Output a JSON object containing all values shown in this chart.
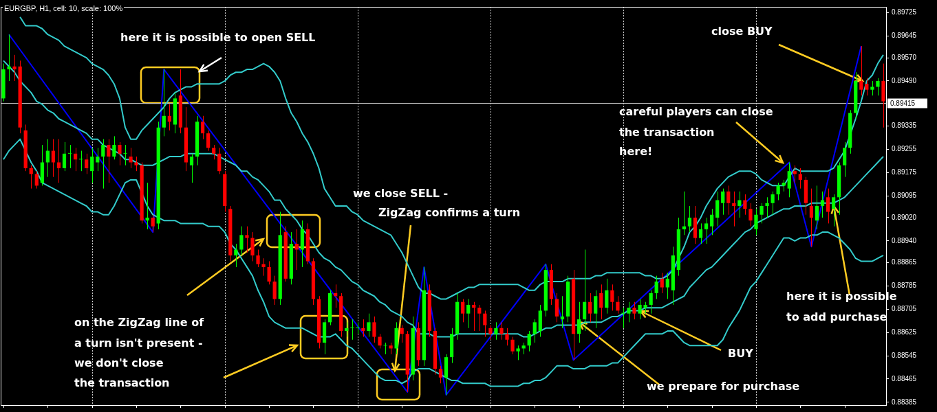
{
  "chart_data": {
    "type": "candlestick",
    "title": "EURGBP, H1, cell: 10, scale: 100%",
    "categories": [
      null,
      null,
      null,
      null,
      null,
      null,
      null,
      null,
      null,
      null,
      null,
      null,
      null,
      null,
      null,
      null,
      null,
      null,
      null,
      null,
      null,
      null,
      null,
      null,
      null,
      null,
      null,
      null,
      null,
      null,
      null,
      null,
      null,
      null,
      null,
      null,
      null,
      null,
      null,
      null,
      null,
      null,
      null,
      null,
      null,
      null,
      null,
      null,
      null,
      null,
      null,
      null,
      null,
      null,
      null,
      null,
      null,
      null,
      null,
      null,
      null,
      null,
      null,
      null,
      null,
      null,
      null,
      null,
      null,
      null,
      null,
      null,
      null,
      null,
      null,
      null,
      null,
      null,
      null,
      null,
      null,
      null,
      null,
      null,
      null,
      null,
      null,
      null,
      null,
      null,
      null,
      null,
      null,
      null,
      null,
      null,
      null,
      null,
      null,
      null,
      null,
      null,
      null,
      null,
      null,
      null,
      null,
      null,
      null,
      null,
      null,
      null,
      null,
      null,
      null,
      null,
      null,
      null,
      null,
      null,
      null,
      null,
      null,
      null,
      null,
      null,
      null,
      null,
      null,
      null,
      null,
      null,
      null,
      null,
      null,
      null,
      null,
      null,
      null,
      null,
      null,
      null,
      null,
      null,
      null,
      null,
      null,
      null,
      null,
      null,
      null,
      null,
      null,
      null,
      null,
      null,
      null,
      null,
      null,
      null
    ],
    "ohlc": [
      [
        0.8943,
        0.8955,
        0.8942,
        0.8953
      ],
      [
        0.8953,
        0.8965,
        0.8949,
        0.8954
      ],
      [
        0.8954,
        0.8958,
        0.8949,
        0.8953
      ],
      [
        0.8954,
        0.8956,
        0.8931,
        0.8933
      ],
      [
        0.8932,
        0.8934,
        0.8918,
        0.8919
      ],
      [
        0.8919,
        0.892,
        0.8912,
        0.8917
      ],
      [
        0.8917,
        0.8918,
        0.8912,
        0.8913
      ],
      [
        0.8914,
        0.8927,
        0.8913,
        0.8921
      ],
      [
        0.8921,
        0.8929,
        0.8916,
        0.8925
      ],
      [
        0.8925,
        0.8929,
        0.8916,
        0.8921
      ],
      [
        0.8921,
        0.8929,
        0.8914,
        0.8919
      ],
      [
        0.8919,
        0.8928,
        0.8918,
        0.8924
      ],
      [
        0.8924,
        0.8927,
        0.8919,
        0.8924
      ],
      [
        0.8924,
        0.8926,
        0.8918,
        0.8922
      ],
      [
        0.8922,
        0.8925,
        0.8918,
        0.8922
      ],
      [
        0.8922,
        0.8924,
        0.8917,
        0.8919
      ],
      [
        0.8918,
        0.8926,
        0.8914,
        0.8923
      ],
      [
        0.8921,
        0.8926,
        0.8918,
        0.8923
      ],
      [
        0.8923,
        0.8929,
        0.8912,
        0.8927
      ],
      [
        0.8927,
        0.8929,
        0.8914,
        0.8923
      ],
      [
        0.8923,
        0.893,
        0.8922,
        0.8927
      ],
      [
        0.8927,
        0.8928,
        0.892,
        0.8924
      ],
      [
        0.8924,
        0.8927,
        0.892,
        0.8924
      ],
      [
        0.8923,
        0.8926,
        0.8919,
        0.8921
      ],
      [
        0.8921,
        0.8923,
        0.8918,
        0.892
      ],
      [
        0.892,
        0.8921,
        0.89,
        0.8901
      ],
      [
        0.8901,
        0.8914,
        0.8898,
        0.8902
      ],
      [
        0.8902,
        0.8903,
        0.8897,
        0.8899
      ],
      [
        0.89,
        0.8935,
        0.8898,
        0.8933
      ],
      [
        0.8933,
        0.8953,
        0.893,
        0.8937
      ],
      [
        0.8937,
        0.8941,
        0.8932,
        0.8935
      ],
      [
        0.8934,
        0.8945,
        0.8931,
        0.8943
      ],
      [
        0.8944,
        0.8953,
        0.8931,
        0.8933
      ],
      [
        0.8933,
        0.894,
        0.8918,
        0.8921
      ],
      [
        0.892,
        0.8924,
        0.8914,
        0.8923
      ],
      [
        0.8923,
        0.8937,
        0.892,
        0.8935
      ],
      [
        0.8935,
        0.8937,
        0.8929,
        0.8931
      ],
      [
        0.8931,
        0.8932,
        0.8925,
        0.8926
      ],
      [
        0.8926,
        0.8927,
        0.8922,
        0.8924
      ],
      [
        0.8924,
        0.8926,
        0.8917,
        0.8918
      ],
      [
        0.8917,
        0.8918,
        0.8904,
        0.8906
      ],
      [
        0.8905,
        0.8906,
        0.8887,
        0.8889
      ],
      [
        0.8889,
        0.8893,
        0.8885,
        0.8891
      ],
      [
        0.8891,
        0.8899,
        0.8889,
        0.8896
      ],
      [
        0.8896,
        0.8899,
        0.889,
        0.8895
      ],
      [
        0.8895,
        0.8897,
        0.8887,
        0.8889
      ],
      [
        0.8889,
        0.8891,
        0.8885,
        0.8886
      ],
      [
        0.8886,
        0.8888,
        0.8882,
        0.8885
      ],
      [
        0.8885,
        0.8887,
        0.8879,
        0.888
      ],
      [
        0.888,
        0.8882,
        0.8872,
        0.8874
      ],
      [
        0.8874,
        0.8904,
        0.8872,
        0.8896
      ],
      [
        0.8897,
        0.8899,
        0.888,
        0.8881
      ],
      [
        0.8881,
        0.8897,
        0.8879,
        0.8893
      ],
      [
        0.8893,
        0.8898,
        0.8884,
        0.8891
      ],
      [
        0.8891,
        0.8901,
        0.8885,
        0.8898
      ],
      [
        0.8898,
        0.89,
        0.8886,
        0.8887
      ],
      [
        0.8887,
        0.8888,
        0.8872,
        0.8874
      ],
      [
        0.8874,
        0.8875,
        0.8857,
        0.8859
      ],
      [
        0.8859,
        0.8867,
        0.8855,
        0.8866
      ],
      [
        0.8866,
        0.8877,
        0.8865,
        0.8876
      ],
      [
        0.8876,
        0.8879,
        0.8871,
        0.8875
      ],
      [
        0.8875,
        0.8876,
        0.8861,
        0.8863
      ],
      [
        0.8863,
        0.8866,
        0.8861,
        0.8864
      ],
      [
        0.8864,
        0.8867,
        0.886,
        0.8864
      ],
      [
        0.8864,
        0.8866,
        0.8862,
        0.8864
      ],
      [
        0.8864,
        0.8867,
        0.8861,
        0.8863
      ],
      [
        0.8863,
        0.8869,
        0.8861,
        0.8866
      ],
      [
        0.8866,
        0.8868,
        0.8859,
        0.8861
      ],
      [
        0.8861,
        0.8862,
        0.8857,
        0.8858
      ],
      [
        0.8858,
        0.8859,
        0.8855,
        0.8858
      ],
      [
        0.8858,
        0.8859,
        0.8855,
        0.8857
      ],
      [
        0.8857,
        0.8866,
        0.8855,
        0.8864
      ],
      [
        0.8864,
        0.8865,
        0.8859,
        0.8862
      ],
      [
        0.8862,
        0.8863,
        0.8842,
        0.8848
      ],
      [
        0.8848,
        0.8868,
        0.8846,
        0.8864
      ],
      [
        0.8864,
        0.8866,
        0.8851,
        0.8853
      ],
      [
        0.8853,
        0.8885,
        0.8851,
        0.8877
      ],
      [
        0.8877,
        0.8879,
        0.8861,
        0.8863
      ],
      [
        0.8863,
        0.8864,
        0.8848,
        0.885
      ],
      [
        0.885,
        0.8851,
        0.8845,
        0.8847
      ],
      [
        0.8847,
        0.8855,
        0.8841,
        0.8854
      ],
      [
        0.8854,
        0.8864,
        0.8852,
        0.8862
      ],
      [
        0.8862,
        0.8876,
        0.886,
        0.8873
      ],
      [
        0.8873,
        0.8874,
        0.8866,
        0.8869
      ],
      [
        0.8869,
        0.8874,
        0.8864,
        0.8872
      ],
      [
        0.8872,
        0.8873,
        0.8863,
        0.8871
      ],
      [
        0.8871,
        0.8872,
        0.8863,
        0.8869
      ],
      [
        0.8869,
        0.887,
        0.8861,
        0.8865
      ],
      [
        0.8864,
        0.8865,
        0.886,
        0.8862
      ],
      [
        0.8862,
        0.8866,
        0.886,
        0.8864
      ],
      [
        0.8864,
        0.8866,
        0.886,
        0.8862
      ],
      [
        0.8862,
        0.8864,
        0.8858,
        0.886
      ],
      [
        0.886,
        0.8861,
        0.8855,
        0.8856
      ],
      [
        0.8856,
        0.8858,
        0.8853,
        0.8857
      ],
      [
        0.8857,
        0.8859,
        0.8855,
        0.8858
      ],
      [
        0.8858,
        0.8863,
        0.8856,
        0.8862
      ],
      [
        0.8862,
        0.8867,
        0.8859,
        0.8866
      ],
      [
        0.8863,
        0.8872,
        0.8861,
        0.887
      ],
      [
        0.887,
        0.8886,
        0.8868,
        0.8884
      ],
      [
        0.8884,
        0.8886,
        0.8872,
        0.8874
      ],
      [
        0.8874,
        0.8876,
        0.8866,
        0.8868
      ],
      [
        0.8867,
        0.8875,
        0.8864,
        0.8868
      ],
      [
        0.8868,
        0.8882,
        0.8866,
        0.888
      ],
      [
        0.8881,
        0.8884,
        0.8853,
        0.8862
      ],
      [
        0.8862,
        0.8873,
        0.8859,
        0.8867
      ],
      [
        0.8867,
        0.8891,
        0.8863,
        0.8873
      ],
      [
        0.8873,
        0.8876,
        0.8866,
        0.8869
      ],
      [
        0.8869,
        0.8877,
        0.8864,
        0.8875
      ],
      [
        0.8876,
        0.8879,
        0.8867,
        0.8871
      ],
      [
        0.8871,
        0.8881,
        0.8869,
        0.8877
      ],
      [
        0.8877,
        0.8879,
        0.887,
        0.8873
      ],
      [
        0.8873,
        0.8875,
        0.8869,
        0.887
      ],
      [
        0.8869,
        0.8871,
        0.8864,
        0.8869
      ],
      [
        0.8869,
        0.8873,
        0.8866,
        0.8871
      ],
      [
        0.8871,
        0.8873,
        0.8867,
        0.8869
      ],
      [
        0.8869,
        0.8874,
        0.8867,
        0.8872
      ],
      [
        0.8871,
        0.8873,
        0.8869,
        0.8872
      ],
      [
        0.8872,
        0.8877,
        0.8869,
        0.8876
      ],
      [
        0.8876,
        0.8882,
        0.8874,
        0.888
      ],
      [
        0.8881,
        0.8883,
        0.8876,
        0.8878
      ],
      [
        0.8878,
        0.8883,
        0.8874,
        0.8881
      ],
      [
        0.8877,
        0.8892,
        0.8872,
        0.8889
      ],
      [
        0.8884,
        0.8902,
        0.8882,
        0.8898
      ],
      [
        0.8898,
        0.8911,
        0.8896,
        0.8899
      ],
      [
        0.8899,
        0.8906,
        0.8897,
        0.8902
      ],
      [
        0.8902,
        0.8906,
        0.8893,
        0.8895
      ],
      [
        0.8895,
        0.89,
        0.8893,
        0.8898
      ],
      [
        0.8898,
        0.8902,
        0.8893,
        0.89
      ],
      [
        0.8899,
        0.8905,
        0.8896,
        0.8903
      ],
      [
        0.8902,
        0.8911,
        0.8899,
        0.8908
      ],
      [
        0.8907,
        0.8912,
        0.8903,
        0.8911
      ],
      [
        0.8911,
        0.8913,
        0.8903,
        0.8907
      ],
      [
        0.8907,
        0.8911,
        0.8899,
        0.8906
      ],
      [
        0.8906,
        0.8911,
        0.8902,
        0.8908
      ],
      [
        0.8908,
        0.891,
        0.8903,
        0.8905
      ],
      [
        0.8905,
        0.8907,
        0.8899,
        0.8901
      ],
      [
        0.8898,
        0.8905,
        0.8896,
        0.8903
      ],
      [
        0.8903,
        0.8907,
        0.89,
        0.8906
      ],
      [
        0.8906,
        0.8909,
        0.8902,
        0.8907
      ],
      [
        0.8907,
        0.8911,
        0.8903,
        0.891
      ],
      [
        0.891,
        0.8914,
        0.8908,
        0.8913
      ],
      [
        0.8913,
        0.8915,
        0.8911,
        0.8914
      ],
      [
        0.8912,
        0.8921,
        0.8909,
        0.8918
      ],
      [
        0.8918,
        0.892,
        0.8914,
        0.8917
      ],
      [
        0.8917,
        0.8919,
        0.8912,
        0.8915
      ],
      [
        0.8915,
        0.8916,
        0.8903,
        0.8907
      ],
      [
        0.8906,
        0.8912,
        0.8892,
        0.8902
      ],
      [
        0.8901,
        0.8913,
        0.8898,
        0.8906
      ],
      [
        0.8906,
        0.8911,
        0.8902,
        0.8908
      ],
      [
        0.8909,
        0.8912,
        0.89,
        0.8904
      ],
      [
        0.8905,
        0.891,
        0.8899,
        0.8909
      ],
      [
        0.8909,
        0.8921,
        0.8903,
        0.892
      ],
      [
        0.892,
        0.8928,
        0.8916,
        0.8926
      ],
      [
        0.8926,
        0.8939,
        0.8924,
        0.8938
      ],
      [
        0.8938,
        0.8952,
        0.8936,
        0.8949
      ],
      [
        0.8949,
        0.8961,
        0.8944,
        0.8946
      ],
      [
        0.8948,
        0.895,
        0.8944,
        0.8946
      ],
      [
        0.8946,
        0.8949,
        0.8944,
        0.8947
      ],
      [
        0.8947,
        0.895,
        0.8944,
        0.8949
      ],
      [
        0.8949,
        0.8955,
        0.8933,
        0.8942
      ]
    ],
    "colors": [
      "#00ff00",
      "#00ff00",
      "#ff0000",
      "#ff0000",
      "#ff0000",
      "#ff0000",
      "#ff0000",
      "#00ff00",
      "#00ff00",
      "#ff0000",
      "#ff0000",
      "#00ff00",
      "#00ff00",
      "#ff0000",
      "#00ff00",
      "#ff0000",
      "#00ff00",
      "#00ff00",
      "#00ff00",
      "#ff0000",
      "#00ff00",
      "#ff0000",
      "#00ff00",
      "#ff0000",
      "#ff0000",
      "#ff0000",
      "#00ff00",
      "#ff0000",
      "#00ff00",
      "#00ff00",
      "#ff0000",
      "#00ff00",
      "#ff0000",
      "#ff0000",
      "#00ff00",
      "#00ff00",
      "#ff0000",
      "#ff0000",
      "#ff0000",
      "#ff0000",
      "#ff0000",
      "#ff0000",
      "#00ff00",
      "#00ff00",
      "#ff0000",
      "#ff0000",
      "#ff0000",
      "#ff0000",
      "#ff0000",
      "#ff0000",
      "#00ff00",
      "#ff0000",
      "#00ff00",
      "#ff0000",
      "#00ff00",
      "#ff0000",
      "#ff0000",
      "#ff0000",
      "#00ff00",
      "#00ff00",
      "#ff0000",
      "#ff0000",
      "#00ff00",
      "#00ff00",
      "#00ff00",
      "#ff0000",
      "#00ff00",
      "#ff0000",
      "#ff0000",
      "#00ff00",
      "#ff0000",
      "#00ff00",
      "#ff0000",
      "#ff0000",
      "#00ff00",
      "#ff0000",
      "#00ff00",
      "#ff0000",
      "#ff0000",
      "#ff0000",
      "#00ff00",
      "#00ff00",
      "#00ff00",
      "#ff0000",
      "#00ff00",
      "#ff0000",
      "#ff0000",
      "#ff0000",
      "#ff0000",
      "#00ff00",
      "#ff0000",
      "#ff0000",
      "#ff0000",
      "#00ff00",
      "#00ff00",
      "#00ff00",
      "#00ff00",
      "#00ff00",
      "#00ff00",
      "#ff0000",
      "#ff0000",
      "#00ff00",
      "#00ff00",
      "#ff0000",
      "#00ff00",
      "#00ff00",
      "#ff0000",
      "#00ff00",
      "#ff0000",
      "#00ff00",
      "#ff0000",
      "#ff0000",
      "#00ff00",
      "#00ff00",
      "#ff0000",
      "#00ff00",
      "#00ff00",
      "#00ff00",
      "#00ff00",
      "#ff0000",
      "#00ff00",
      "#00ff00",
      "#00ff00",
      "#00ff00",
      "#00ff00",
      "#ff0000",
      "#00ff00",
      "#00ff00",
      "#00ff00",
      "#00ff00",
      "#00ff00",
      "#ff0000",
      "#ff0000",
      "#00ff00",
      "#ff0000",
      "#ff0000",
      "#00ff00",
      "#00ff00",
      "#00ff00",
      "#00ff00",
      "#00ff00",
      "#00ff00",
      "#00ff00",
      "#ff0000",
      "#ff0000",
      "#ff0000",
      "#ff0000",
      "#00ff00",
      "#00ff00",
      "#ff0000",
      "#00ff00",
      "#00ff00",
      "#00ff00",
      "#00ff00",
      "#00ff00",
      "#ff0000",
      "#ff0000",
      "#00ff00",
      "#00ff00",
      "#ff0000"
    ],
    "series": [
      {
        "type": "line",
        "color": "#33cccc",
        "values": [
          null,
          null,
          null,
          0.8971,
          0.8968,
          0.8968,
          0.8968,
          0.8967,
          0.8965,
          0.8964,
          0.8963,
          0.8961,
          0.896,
          0.8959,
          0.8958,
          0.8957,
          0.8955,
          0.8954,
          0.8953,
          0.8951,
          0.8948,
          0.8943,
          0.8933,
          0.8929,
          0.8929,
          0.8932,
          0.8934,
          0.8936,
          0.8938,
          0.894,
          0.8943,
          0.8945,
          0.8946,
          0.8947,
          0.8947,
          0.8948,
          0.8948,
          0.8948,
          0.8948,
          0.8948,
          0.8949,
          0.8951,
          0.8952,
          0.8952,
          0.8953,
          0.8953,
          0.8954,
          0.8955,
          0.8954,
          0.8952,
          0.8949,
          0.8943,
          0.8938,
          0.8935,
          0.8931,
          0.8928,
          0.8924,
          0.8919,
          0.8912,
          0.8909,
          0.8906,
          0.8906,
          0.8906,
          0.8904,
          0.8903,
          0.8901,
          0.89,
          0.8899,
          0.8898,
          0.8897,
          0.8896,
          0.8893,
          0.889,
          0.8886,
          0.8882,
          0.8878,
          0.8876,
          0.8876,
          0.8875,
          0.8874,
          0.8874,
          0.8875,
          0.8876,
          0.8877,
          0.8878,
          0.8878,
          0.8879,
          0.8879,
          0.8879,
          0.8879,
          0.8879,
          0.8879,
          0.8879,
          0.8879,
          0.8878,
          0.8877,
          0.8877,
          0.8879,
          0.888,
          0.888,
          0.888,
          0.888,
          0.8881,
          0.8881,
          0.8881,
          0.8881,
          0.8881,
          0.8882,
          0.8882,
          0.8883,
          0.8883,
          0.8883,
          0.8883,
          0.8883,
          0.8883,
          0.8883,
          0.8882,
          0.8882,
          0.8881,
          0.8881,
          0.8882,
          0.8884,
          null,
          0.8892,
          0.8897,
          0.8899,
          0.8902,
          0.8906,
          0.8909,
          0.8912,
          0.8914,
          0.8916,
          0.8917,
          0.8918,
          0.8918,
          0.8918,
          0.8917,
          0.8915,
          0.8914,
          0.8913,
          0.8913,
          0.8913,
          0.8916,
          0.8919,
          0.8918,
          0.8918,
          0.8918,
          0.8918,
          0.8918,
          0.8918,
          0.8919,
          0.8922,
          0.8925,
          null,
          0.8936,
          0.8942,
          0.8949,
          0.8951,
          0.8955,
          0.8958
        ]
      },
      {
        "type": "line",
        "color": "#33cccc",
        "values": [
          0.8956,
          0.8954,
          0.8952,
          0.8949,
          0.8947,
          0.8945,
          0.8942,
          0.8941,
          0.8939,
          0.8938,
          0.8936,
          0.8935,
          0.8934,
          0.8933,
          0.8932,
          0.8931,
          0.8929,
          0.8929,
          0.8927,
          0.8926,
          0.8925,
          0.8924,
          0.8922,
          0.8922,
          0.8921,
          0.892,
          0.892,
          0.892,
          0.8921,
          0.8922,
          0.8923,
          0.8923,
          0.8923,
          0.8924,
          0.8924,
          0.8924,
          0.8924,
          0.8924,
          0.8924,
          0.8923,
          0.8922,
          0.8921,
          0.892,
          0.8918,
          0.8918,
          0.8916,
          0.8915,
          0.8913,
          0.8911,
          0.8908,
          0.8908,
          0.8905,
          0.8903,
          0.8901,
          0.8898,
          0.8896,
          0.8893,
          0.889,
          0.8888,
          0.8887,
          0.8885,
          0.8884,
          0.8882,
          0.888,
          0.8879,
          0.8877,
          0.8876,
          0.8875,
          0.8873,
          0.8872,
          0.887,
          0.8869,
          0.8868,
          0.8866,
          0.8865,
          0.8862,
          0.8862,
          0.8862,
          0.8861,
          0.8861,
          0.8861,
          0.8861,
          0.8862,
          0.8862,
          0.8862,
          0.8862,
          0.8862,
          0.8862,
          0.8862,
          0.8862,
          0.8862,
          0.8862,
          0.8862,
          0.8862,
          0.8861,
          0.8861,
          0.8862,
          0.8863,
          0.8864,
          0.8864,
          0.8865,
          0.8865,
          0.8865,
          0.8865,
          0.8865,
          0.8866,
          0.8866,
          0.8866,
          0.8866,
          0.8867,
          0.8868,
          0.8868,
          0.8869,
          0.887,
          0.887,
          0.887,
          0.8871,
          0.8871,
          0.8871,
          0.8871,
          0.8872,
          0.8873,
          0.8874,
          0.8875,
          0.8878,
          0.888,
          0.8882,
          0.8884,
          0.8885,
          0.8887,
          0.8889,
          0.8891,
          0.8893,
          0.8895,
          0.8897,
          0.8898,
          0.89,
          0.8901,
          0.8902,
          0.8903,
          0.8904,
          0.8905,
          0.8905,
          0.8906,
          0.8906,
          0.8906,
          0.8907,
          0.8907,
          0.8907,
          0.8907,
          0.8907,
          0.8908,
          0.8909,
          0.8911,
          0.8913,
          0.8915,
          0.8917,
          0.8919,
          0.8921,
          0.8923
        ]
      },
      {
        "type": "line",
        "color": "#33cccc",
        "values": [
          0.8922,
          0.8925,
          0.8927,
          0.8929,
          null,
          0.8921,
          0.8918,
          0.8914,
          0.8913,
          0.8912,
          0.8911,
          0.891,
          0.8909,
          0.8908,
          0.8907,
          0.8906,
          0.8904,
          0.8904,
          0.8903,
          0.8903,
          0.8906,
          0.891,
          0.8914,
          0.8915,
          0.8915,
          null,
          0.8906,
          0.8903,
          0.8902,
          0.8901,
          0.8901,
          0.8901,
          0.89,
          0.89,
          0.89,
          0.89,
          0.89,
          0.8899,
          0.8899,
          0.8899,
          0.8897,
          0.8893,
          0.8891,
          0.8888,
          0.8885,
          0.8882,
          0.8877,
          0.8873,
          0.8868,
          0.8866,
          0.8865,
          0.8864,
          0.8864,
          0.8864,
          0.8864,
          0.8863,
          0.8862,
          0.8861,
          0.8861,
          0.8861,
          0.8862,
          0.886,
          0.8858,
          0.8857,
          0.8855,
          0.8853,
          0.8851,
          0.8849,
          0.8847,
          0.8846,
          0.8846,
          0.8846,
          0.8845,
          0.8846,
          0.8849,
          0.885,
          0.885,
          0.885,
          0.8849,
          0.8848,
          0.8847,
          0.8846,
          0.8846,
          0.8845,
          0.8845,
          0.8845,
          0.8845,
          0.8845,
          0.8844,
          0.8844,
          0.8844,
          0.8844,
          0.8844,
          0.8844,
          0.8845,
          0.8845,
          0.8846,
          0.8846,
          0.8847,
          0.8849,
          0.8851,
          0.8851,
          0.8851,
          0.885,
          0.885,
          0.885,
          0.8851,
          0.8851,
          0.8851,
          0.8851,
          0.8852,
          0.8852,
          0.8854,
          0.8856,
          0.8858,
          0.886,
          0.8862,
          0.8862,
          0.8862,
          0.8862,
          0.8863,
          0.8863,
          0.8861,
          0.8859,
          0.8858,
          0.8858,
          0.8858,
          0.8858,
          0.8858,
          0.8858,
          0.886,
          0.8864,
          0.8867,
          0.887,
          0.8874,
          0.8878,
          0.888,
          0.8883,
          0.8886,
          0.8889,
          0.8892,
          0.8895,
          0.8895,
          0.8894,
          0.8895,
          0.8895,
          0.8896,
          0.8896,
          0.8897,
          0.8897,
          0.8896,
          0.8895,
          0.8893,
          0.8891,
          0.8888,
          0.8887,
          0.8887,
          0.8887,
          0.8888,
          0.8889
        ]
      },
      {
        "type": "line",
        "color": "#0000ff",
        "values": [
          null,
          0.8965,
          null,
          null,
          null,
          null,
          null,
          null,
          null,
          null,
          null,
          null,
          null,
          null,
          null,
          null,
          null,
          null,
          null,
          null,
          null,
          null,
          null,
          null,
          null,
          null,
          null,
          0.8897,
          null,
          0.8953,
          null,
          null,
          null,
          null,
          null,
          null,
          null,
          null,
          null,
          null,
          null,
          null,
          null,
          null,
          null,
          null,
          null,
          null,
          null,
          null,
          null,
          null,
          null,
          null,
          null,
          null,
          null,
          null,
          null,
          null,
          null,
          null,
          null,
          null,
          null,
          null,
          null,
          null,
          null,
          null,
          null,
          null,
          null,
          0.8842,
          null,
          null,
          0.8885,
          null,
          null,
          null,
          0.8841,
          null,
          null,
          null,
          null,
          null,
          null,
          null,
          null,
          null,
          null,
          null,
          null,
          null,
          null,
          null,
          null,
          null,
          0.8886,
          null,
          null,
          null,
          null,
          0.8853,
          null,
          null,
          null,
          null,
          null,
          null,
          null,
          null,
          null,
          null,
          null,
          null,
          null,
          null,
          null,
          null,
          null,
          null,
          null,
          null,
          null,
          null,
          null,
          null,
          null,
          null,
          null,
          null,
          null,
          null,
          null,
          null,
          null,
          null,
          null,
          null,
          null,
          null,
          0.8921,
          null,
          null,
          null,
          0.8892,
          null,
          null,
          null,
          null,
          null,
          null,
          null,
          null,
          0.8961,
          null,
          null,
          null,
          null
        ]
      }
    ],
    "ylim": [
      0.88375,
      0.89745
    ],
    "yticks": [
      0.89725,
      0.89645,
      {
        "value": 0.8957,
        "label": "0.89570"
      },
      {
        "value": 0.8949,
        "label": "0.89490"
      },
      0.89335,
      0.89255,
      0.89175,
      0.89095,
      {
        "value": 0.8902,
        "label": "0.89020"
      },
      {
        "value": 0.8894,
        "label": "0.88940"
      },
      0.88865,
      0.88785,
      0.88705,
      0.88625,
      0.88545,
      0.88465,
      0.88385
    ],
    "ref_lines": [
      {
        "axis": "y",
        "value": 0.89415,
        "label": "0.89415",
        "color": "#c0c0c0"
      }
    ],
    "annotations": [
      "here it is possible to open SELL",
      "we close SELL -\nZigZag confirms a turn",
      "on the ZigZag line of\na turn isn't present -\nwe don't close\nthe transaction",
      "careful players can close\nthe transaction\nhere!",
      "close BUY",
      "here it is possible\nto add purchase",
      "BUY",
      "we prepare for purchase"
    ],
    "grid": "x",
    "tick_labels": "y"
  }
}
